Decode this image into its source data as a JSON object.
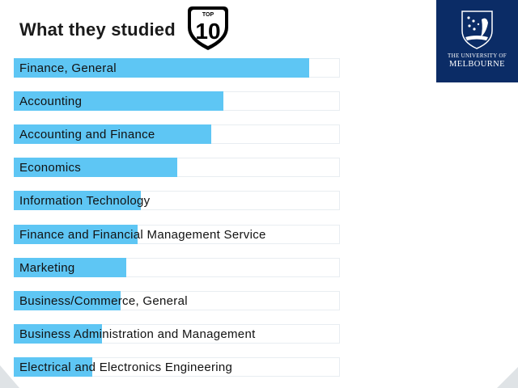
{
  "header": {
    "title": "What they studied",
    "badge_small": "TOP",
    "badge_big": "10"
  },
  "logo": {
    "line1": "THE UNIVERSITY OF",
    "line2": "MELBOURNE"
  },
  "colors": {
    "bar": "#5ec6f4",
    "logo_bg": "#0b2c66"
  },
  "chart_data": {
    "type": "bar",
    "orientation": "horizontal",
    "title": "What they studied",
    "categories": [
      "Finance, General",
      "Accounting",
      "Accounting and Finance",
      "Economics",
      "Information Technology",
      "Finance and Financial Management Service",
      "Marketing",
      "Business/Commerce, General",
      "Business Administration and Management",
      "Electrical and Electronics Engineering"
    ],
    "values": [
      0.905,
      0.643,
      0.605,
      0.501,
      0.39,
      0.38,
      0.344,
      0.327,
      0.27,
      0.24
    ],
    "xlim": [
      0,
      1
    ]
  }
}
